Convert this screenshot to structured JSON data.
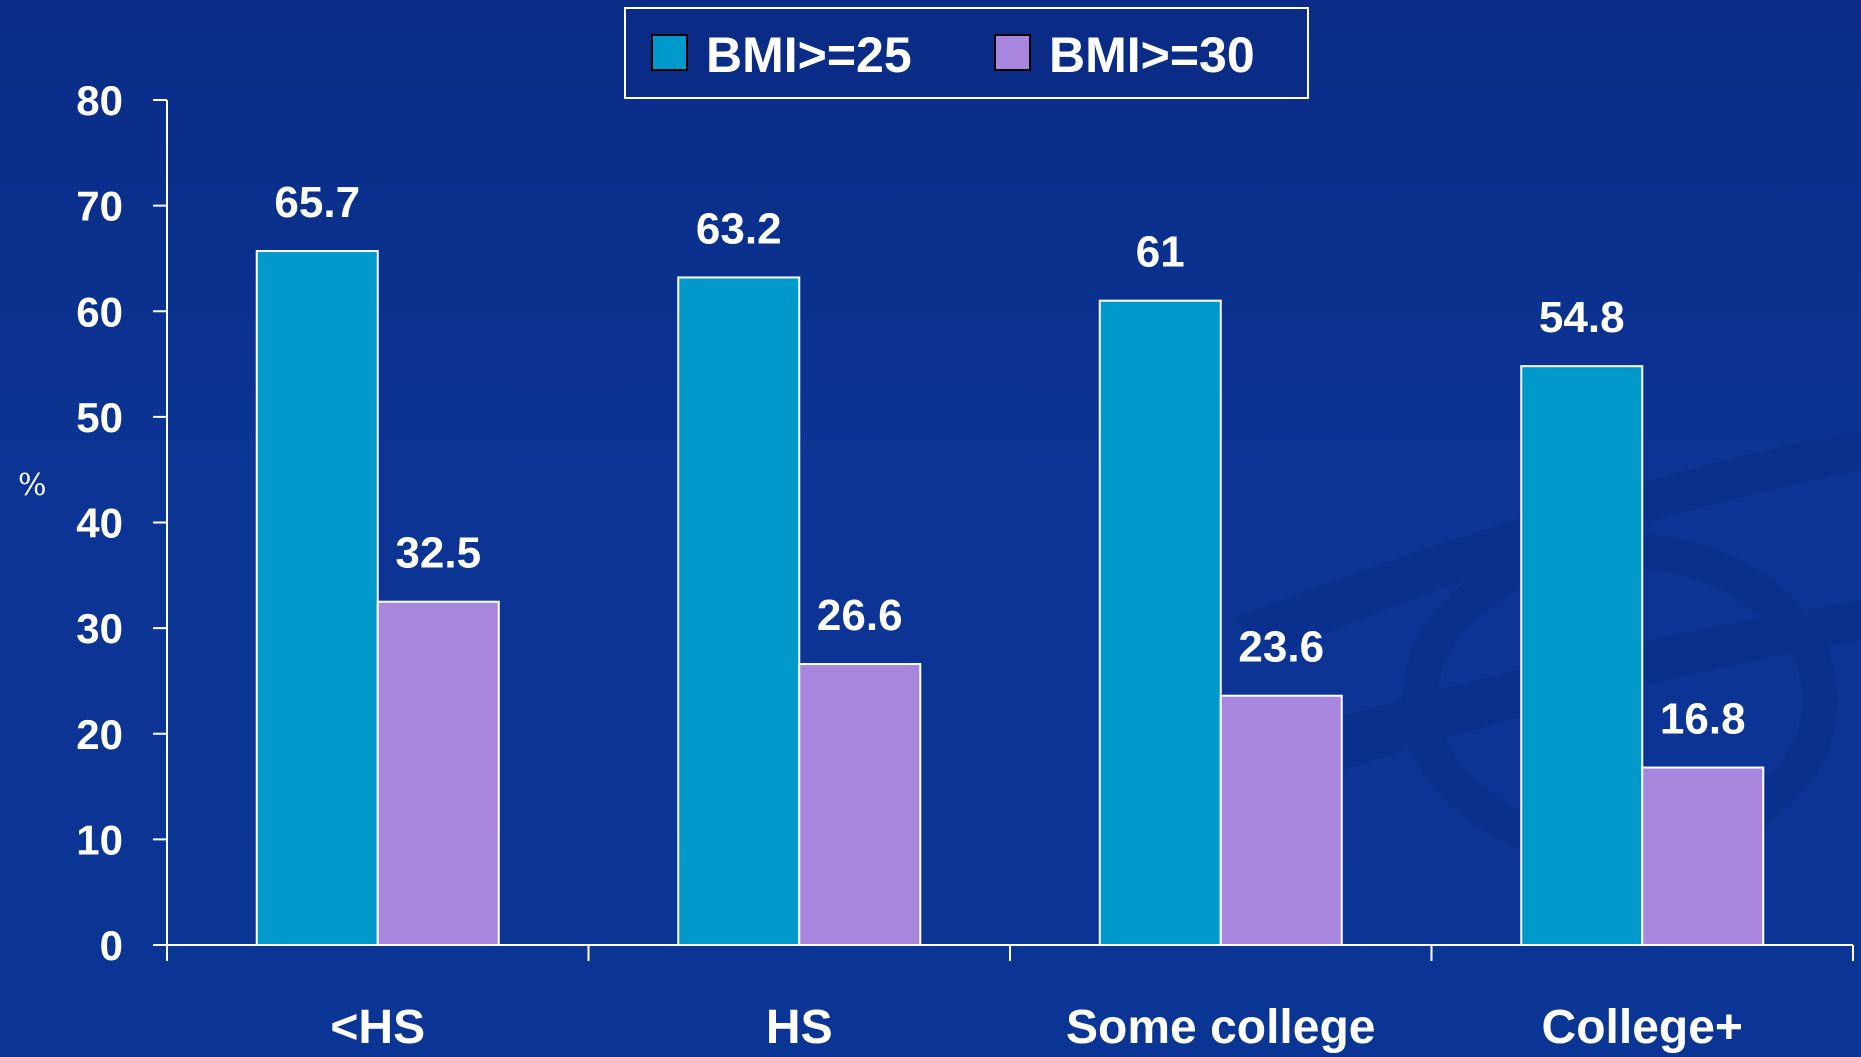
{
  "chart_data": {
    "type": "bar",
    "title": "",
    "xlabel": "",
    "ylabel": "%",
    "categories": [
      "<HS",
      "HS",
      "Some college",
      "College+"
    ],
    "series": [
      {
        "name": "BMI>=25",
        "values": [
          65.7,
          63.2,
          61,
          54.8
        ],
        "color": "#0099cc"
      },
      {
        "name": "BMI>=30",
        "values": [
          32.5,
          26.6,
          23.6,
          16.8
        ],
        "color": "#a886de"
      }
    ],
    "ylim": [
      0,
      80
    ],
    "yticks": [
      0,
      10,
      20,
      30,
      40,
      50,
      60,
      70,
      80
    ],
    "grid": false,
    "legend_position": "top-center",
    "background_color": "#0b3494",
    "text_color": "#ffffff"
  }
}
